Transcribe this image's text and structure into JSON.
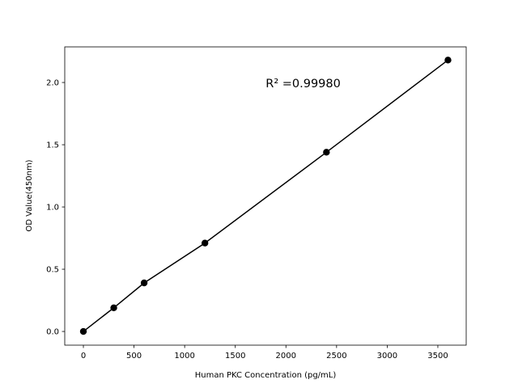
{
  "chart_data": {
    "type": "line",
    "title": "",
    "xlabel": "Human PKC Concentration (pg/mL)",
    "ylabel": "OD Value(450nm)",
    "x": [
      0,
      300,
      600,
      1200,
      2400,
      3600
    ],
    "series": [
      {
        "values": [
          0.0,
          0.19,
          0.39,
          0.71,
          1.44,
          2.18
        ],
        "color": "#000000",
        "marker": "circle"
      }
    ],
    "xlim": [
      -184,
      3780
    ],
    "ylim": [
      -0.11,
      2.286
    ],
    "xticks": [
      0,
      500,
      1000,
      1500,
      2000,
      2500,
      3000,
      3500
    ],
    "yticks": [
      0.0,
      0.5,
      1.0,
      1.5,
      2.0
    ],
    "xtick_labels": [
      "0",
      "500",
      "1000",
      "1500",
      "2000",
      "2500",
      "3000",
      "3500"
    ],
    "ytick_labels": [
      "0.0",
      "0.5",
      "1.0",
      "1.5",
      "2.0"
    ],
    "annotation": "R² =0.99980",
    "grid": false,
    "legend": "none"
  }
}
